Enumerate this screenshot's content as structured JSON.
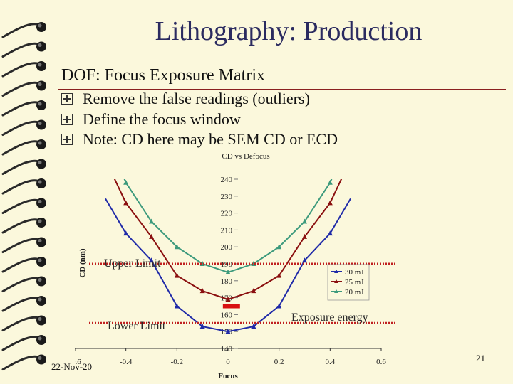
{
  "slide": {
    "title": "Lithography: Production",
    "subtitle": "DOF: Focus Exposure Matrix",
    "bullets": [
      "Remove the false readings (outliers)",
      "Define the focus window",
      "Note: CD here may be SEM CD or ECD"
    ],
    "date": "22-Nov-20",
    "page_number": "21",
    "annotations": {
      "upper_limit": "Upper Limit",
      "lower_limit": "Lower Limit",
      "exposure_energy": "Exposure energy"
    }
  },
  "colors": {
    "background": "#fbf8dc",
    "series_30mj": "#1f2aa8",
    "series_25mj": "#8b1010",
    "series_20mj": "#3c9a7c",
    "limit_line": "#c02020",
    "marker": "#d81010"
  },
  "chart_data": {
    "type": "line",
    "title": "CD vs Defocus",
    "xlabel": "Focus",
    "ylabel": "CD (nm)",
    "xlim": [
      -0.6,
      0.6
    ],
    "ylim": [
      140,
      240
    ],
    "x_ticks": [
      "-0.6",
      "-0.4",
      "-0.2",
      "0",
      "0.2",
      "0.4",
      "0.6"
    ],
    "y_ticks": [
      "140",
      "150",
      "160",
      "170",
      "180",
      "190",
      "200",
      "210",
      "220",
      "230",
      "240"
    ],
    "legend_position": "bottom-right",
    "series": [
      {
        "name": "30 mJ",
        "x": [
          -0.4,
          -0.3,
          -0.2,
          -0.1,
          0.0,
          0.1,
          0.2,
          0.3,
          0.4
        ],
        "y": [
          208,
          192,
          165,
          153,
          150,
          153,
          165,
          192,
          208
        ],
        "marker": "triangle"
      },
      {
        "name": "25 mJ",
        "x": [
          -0.4,
          -0.3,
          -0.2,
          -0.1,
          0.0,
          0.1,
          0.2,
          0.3,
          0.4
        ],
        "y": [
          226,
          206,
          183,
          174,
          169,
          174,
          183,
          206,
          226
        ],
        "marker": "triangle"
      },
      {
        "name": "20 mJ",
        "x": [
          -0.4,
          -0.3,
          -0.2,
          -0.1,
          0.0,
          0.1,
          0.2,
          0.3,
          0.4
        ],
        "y": [
          238,
          215,
          200,
          190,
          185,
          190,
          200,
          215,
          238
        ],
        "marker": "triangle"
      }
    ],
    "upper_limit": 190,
    "lower_limit": 155
  }
}
